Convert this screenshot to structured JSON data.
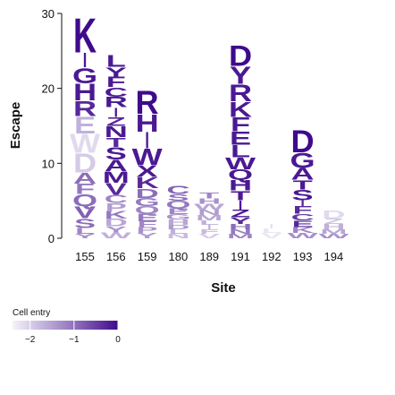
{
  "chart_data": {
    "type": "sequence-logo",
    "xlabel": "Site",
    "ylabel": "Escape",
    "ylim": [
      0,
      30
    ],
    "yticks": [
      0,
      10,
      20,
      30
    ],
    "sites": [
      {
        "site": "155",
        "stack": [
          {
            "aa": "Y",
            "h": 0.6,
            "ce": -1.0
          },
          {
            "aa": "L",
            "h": 0.8,
            "ce": -0.9
          },
          {
            "aa": "S",
            "h": 1.3,
            "ce": -0.7
          },
          {
            "aa": "V",
            "h": 1.6,
            "ce": -0.6
          },
          {
            "aa": "Q",
            "h": 1.6,
            "ce": -0.7
          },
          {
            "aa": "F",
            "h": 1.4,
            "ce": -0.8
          },
          {
            "aa": "A",
            "h": 1.5,
            "ce": -0.7
          },
          {
            "aa": "D",
            "h": 2.6,
            "ce": -1.6
          },
          {
            "aa": "W",
            "h": 2.6,
            "ce": -1.8
          },
          {
            "aa": "E",
            "h": 2.3,
            "ce": -1.3
          },
          {
            "aa": "R",
            "h": 2.1,
            "ce": -0.2
          },
          {
            "aa": "H",
            "h": 2.3,
            "ce": -0.1
          },
          {
            "aa": "G",
            "h": 2.1,
            "ce": -0.1
          },
          {
            "aa": "I",
            "h": 2.0,
            "ce": -0.1
          },
          {
            "aa": "K",
            "h": 4.7,
            "ce": 0.0
          }
        ]
      },
      {
        "site": "156",
        "stack": [
          {
            "aa": "W",
            "h": 0.8,
            "ce": -1.3
          },
          {
            "aa": "Y",
            "h": 0.8,
            "ce": -1.0
          },
          {
            "aa": "D",
            "h": 1.0,
            "ce": -1.2
          },
          {
            "aa": "K",
            "h": 1.0,
            "ce": -0.8
          },
          {
            "aa": "P",
            "h": 1.1,
            "ce": -1.1
          },
          {
            "aa": "C",
            "h": 1.1,
            "ce": -0.9
          },
          {
            "aa": "V",
            "h": 1.6,
            "ce": -0.2
          },
          {
            "aa": "M",
            "h": 1.5,
            "ce": -0.1
          },
          {
            "aa": "A",
            "h": 1.6,
            "ce": -0.1
          },
          {
            "aa": "S",
            "h": 1.7,
            "ce": -0.1
          },
          {
            "aa": "T",
            "h": 1.3,
            "ce": -0.2
          },
          {
            "aa": "N",
            "h": 1.5,
            "ce": -0.1
          },
          {
            "aa": "Z",
            "h": 1.2,
            "ce": -0.2
          },
          {
            "aa": "I",
            "h": 1.3,
            "ce": -0.1
          },
          {
            "aa": "R",
            "h": 1.4,
            "ce": -0.1
          },
          {
            "aa": "C",
            "h": 1.3,
            "ce": -0.1
          },
          {
            "aa": "F",
            "h": 1.4,
            "ce": -0.1
          },
          {
            "aa": "Y",
            "h": 1.3,
            "ce": -0.1
          },
          {
            "aa": "L",
            "h": 1.6,
            "ce": -0.1
          }
        ]
      },
      {
        "site": "159",
        "stack": [
          {
            "aa": "Y",
            "h": 0.7,
            "ce": -1.1
          },
          {
            "aa": "P",
            "h": 0.8,
            "ce": -1.0
          },
          {
            "aa": "F",
            "h": 0.8,
            "ce": -0.9
          },
          {
            "aa": "E",
            "h": 1.0,
            "ce": -0.8
          },
          {
            "aa": "Q",
            "h": 1.0,
            "ce": -0.9
          },
          {
            "aa": "G",
            "h": 1.1,
            "ce": -0.8
          },
          {
            "aa": "D",
            "h": 1.3,
            "ce": -0.7
          },
          {
            "aa": "K",
            "h": 1.5,
            "ce": -0.2
          },
          {
            "aa": "X",
            "h": 1.6,
            "ce": -0.1
          },
          {
            "aa": "W",
            "h": 2.2,
            "ce": -0.1
          },
          {
            "aa": "I",
            "h": 2.2,
            "ce": -0.1
          },
          {
            "aa": "H",
            "h": 2.4,
            "ce": -0.1
          },
          {
            "aa": "R",
            "h": 3.2,
            "ce": 0.0
          }
        ]
      },
      {
        "site": "180",
        "stack": [
          {
            "aa": "N",
            "h": 0.6,
            "ce": -1.4
          },
          {
            "aa": "L",
            "h": 0.6,
            "ce": -1.3
          },
          {
            "aa": "D",
            "h": 0.6,
            "ce": -1.1
          },
          {
            "aa": "H",
            "h": 0.7,
            "ce": -1.2
          },
          {
            "aa": "G",
            "h": 0.7,
            "ce": -1.0
          },
          {
            "aa": "E",
            "h": 0.8,
            "ce": -0.9
          },
          {
            "aa": "Q",
            "h": 1.0,
            "ce": -0.8
          },
          {
            "aa": "S",
            "h": 0.9,
            "ce": -0.7
          },
          {
            "aa": "C",
            "h": 1.1,
            "ce": -0.6
          }
        ]
      },
      {
        "site": "189",
        "stack": [
          {
            "aa": "V",
            "h": 0.6,
            "ce": -1.6
          },
          {
            "aa": "F",
            "h": 0.6,
            "ce": -1.4
          },
          {
            "aa": "I",
            "h": 0.6,
            "ce": -1.3
          },
          {
            "aa": "L",
            "h": 0.6,
            "ce": -1.3
          },
          {
            "aa": "M",
            "h": 0.7,
            "ce": -1.2
          },
          {
            "aa": "N",
            "h": 0.7,
            "ce": -1.1
          },
          {
            "aa": "W",
            "h": 0.8,
            "ce": -1.2
          },
          {
            "aa": "H",
            "h": 0.7,
            "ce": -1.0
          },
          {
            "aa": "T",
            "h": 0.8,
            "ce": -0.9
          }
        ]
      },
      {
        "site": "191",
        "stack": [
          {
            "aa": "M",
            "h": 0.6,
            "ce": -0.9
          },
          {
            "aa": "N",
            "h": 0.6,
            "ce": -0.8
          },
          {
            "aa": "H",
            "h": 0.7,
            "ce": -0.7
          },
          {
            "aa": "Y",
            "h": 0.9,
            "ce": -0.2
          },
          {
            "aa": "Z",
            "h": 1.0,
            "ce": -0.1
          },
          {
            "aa": "I",
            "h": 1.3,
            "ce": -0.1
          },
          {
            "aa": "T",
            "h": 1.3,
            "ce": -0.1
          },
          {
            "aa": "H",
            "h": 1.4,
            "ce": -0.1
          },
          {
            "aa": "Q",
            "h": 1.4,
            "ce": -0.1
          },
          {
            "aa": "W",
            "h": 1.6,
            "ce": -0.1
          },
          {
            "aa": "L",
            "h": 1.7,
            "ce": -0.1
          },
          {
            "aa": "E",
            "h": 1.8,
            "ce": -0.1
          },
          {
            "aa": "F",
            "h": 1.9,
            "ce": -0.1
          },
          {
            "aa": "K",
            "h": 2.1,
            "ce": -0.1
          },
          {
            "aa": "R",
            "h": 2.3,
            "ce": -0.1
          },
          {
            "aa": "Y",
            "h": 2.4,
            "ce": -0.1
          },
          {
            "aa": "D",
            "h": 2.8,
            "ce": 0.0
          }
        ]
      },
      {
        "site": "192",
        "stack": [
          {
            "aa": "V",
            "h": 0.7,
            "ce": -2.0
          },
          {
            "aa": "L",
            "h": 0.6,
            "ce": -2.0
          },
          {
            "aa": "I",
            "h": 0.6,
            "ce": -1.9
          }
        ]
      },
      {
        "site": "193",
        "stack": [
          {
            "aa": "W",
            "h": 0.7,
            "ce": -1.0
          },
          {
            "aa": "K",
            "h": 0.8,
            "ce": -0.9
          },
          {
            "aa": "E",
            "h": 0.9,
            "ce": -0.2
          },
          {
            "aa": "C",
            "h": 0.9,
            "ce": -0.3
          },
          {
            "aa": "F",
            "h": 1.0,
            "ce": -0.2
          },
          {
            "aa": "I",
            "h": 0.8,
            "ce": -0.2
          },
          {
            "aa": "S",
            "h": 1.4,
            "ce": -0.1
          },
          {
            "aa": "T",
            "h": 1.3,
            "ce": -0.1
          },
          {
            "aa": "A",
            "h": 1.6,
            "ce": -0.1
          },
          {
            "aa": "G",
            "h": 2.1,
            "ce": -0.1
          },
          {
            "aa": "D",
            "h": 3.0,
            "ce": 0.0
          }
        ]
      },
      {
        "site": "194",
        "stack": [
          {
            "aa": "W",
            "h": 0.6,
            "ce": -1.0
          },
          {
            "aa": "M",
            "h": 0.6,
            "ce": -1.2
          },
          {
            "aa": "H",
            "h": 0.7,
            "ce": -1.3
          },
          {
            "aa": "Z",
            "h": 0.7,
            "ce": -1.5
          },
          {
            "aa": "D",
            "h": 1.1,
            "ce": -1.8
          }
        ]
      }
    ],
    "legend": {
      "title": "Cell entry",
      "ticks": [
        "-2",
        "-1",
        "0"
      ],
      "range": [
        -2.4,
        0
      ],
      "color_low": "#f4f3f9",
      "color_high": "#3f0a8c"
    }
  }
}
